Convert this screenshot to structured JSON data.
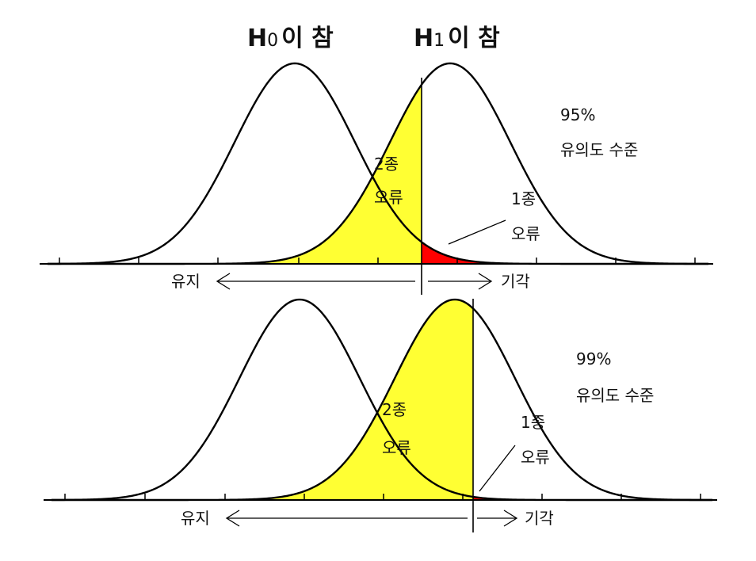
{
  "headers": {
    "h0": {
      "main": "H",
      "sub": "0",
      "rest": "이 참"
    },
    "h1": {
      "main": "H",
      "sub": "1",
      "rest": "이 참"
    }
  },
  "colors": {
    "type2_error": "#ffff33",
    "type1_error": "#ff0000"
  },
  "panels": [
    {
      "confidence": "95%",
      "level_label": "유의도 수준",
      "type2_label": [
        "2종",
        "오류"
      ],
      "type1_label": [
        "1종",
        "오류"
      ],
      "keep_label": "유지",
      "reject_label": "기각"
    },
    {
      "confidence": "99%",
      "level_label": "유의도 수준",
      "type2_label": [
        "2종",
        "오류"
      ],
      "type1_label": [
        "1종",
        "오류"
      ],
      "keep_label": "유지",
      "reject_label": "기각"
    }
  ]
}
